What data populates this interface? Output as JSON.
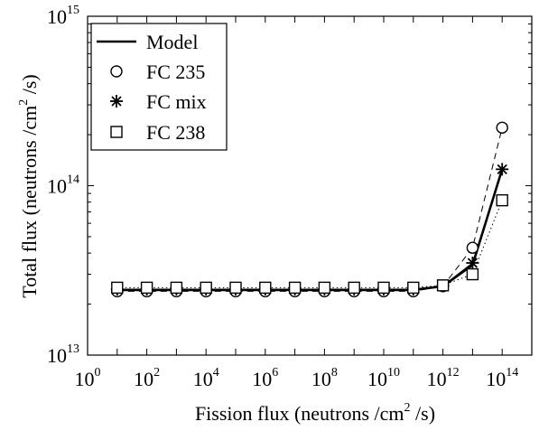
{
  "chart_data": {
    "type": "line",
    "xlabel": {
      "pre": "Fission flux (neutrons /cm",
      "sup": "2",
      "post": " /s)"
    },
    "ylabel": {
      "pre": "Total flux (neutrons /cm",
      "sup": "2",
      "post": " /s)"
    },
    "x_scale": "log",
    "y_scale": "log",
    "xlim": [
      1,
      1000000000000000.0
    ],
    "ylim": [
      10000000000000.0,
      1000000000000000.0
    ],
    "x_ticks": [
      {
        "base": "10",
        "exp": "0",
        "value": 1
      },
      {
        "base": "10",
        "exp": "2",
        "value": 100
      },
      {
        "base": "10",
        "exp": "4",
        "value": 10000
      },
      {
        "base": "10",
        "exp": "6",
        "value": 1000000
      },
      {
        "base": "10",
        "exp": "8",
        "value": 100000000
      },
      {
        "base": "10",
        "exp": "10",
        "value": 10000000000
      },
      {
        "base": "10",
        "exp": "12",
        "value": 1000000000000
      },
      {
        "base": "10",
        "exp": "14",
        "value": 100000000000000
      }
    ],
    "y_ticks": [
      {
        "base": "10",
        "exp": "13",
        "value": 10000000000000.0
      },
      {
        "base": "10",
        "exp": "14",
        "value": 100000000000000.0
      },
      {
        "base": "10",
        "exp": "15",
        "value": 1000000000000000.0
      }
    ],
    "grid": false,
    "legend_position": "top-left",
    "x": [
      10,
      100,
      1000,
      10000,
      100000,
      1000000,
      10000000,
      100000000,
      1000000000,
      10000000000,
      100000000000,
      1000000000000,
      10000000000000,
      100000000000000
    ],
    "series": [
      {
        "name": "Model",
        "line": "solid",
        "marker": "none",
        "values": [
          24200000000000.0,
          24200000000000.0,
          24200000000000.0,
          24200000000000.0,
          24200000000000.0,
          24200000000000.0,
          24200000000000.0,
          24200000000000.0,
          24200000000000.0,
          24200000000000.0,
          24200000000000.0,
          25500000000000.0,
          34000000000000.0,
          125000000000000.0
        ]
      },
      {
        "name": "FC 235",
        "line": "dashed",
        "marker": "circle",
        "values": [
          23800000000000.0,
          23800000000000.0,
          23800000000000.0,
          23800000000000.0,
          23800000000000.0,
          23800000000000.0,
          23800000000000.0,
          23800000000000.0,
          23800000000000.0,
          23800000000000.0,
          23800000000000.0,
          25500000000000.0,
          43000000000000.0,
          220000000000000.0
        ]
      },
      {
        "name": "FC mix",
        "line": "solid",
        "marker": "asterisk",
        "values": [
          24500000000000.0,
          24500000000000.0,
          24500000000000.0,
          24500000000000.0,
          24500000000000.0,
          24500000000000.0,
          24500000000000.0,
          24500000000000.0,
          24500000000000.0,
          24500000000000.0,
          24500000000000.0,
          25700000000000.0,
          35000000000000.0,
          125000000000000.0
        ]
      },
      {
        "name": "FC 238",
        "line": "dotted",
        "marker": "square",
        "values": [
          25000000000000.0,
          25000000000000.0,
          25000000000000.0,
          25000000000000.0,
          25000000000000.0,
          25000000000000.0,
          25000000000000.0,
          25000000000000.0,
          25000000000000.0,
          25000000000000.0,
          25000000000000.0,
          25800000000000.0,
          30000000000000.0,
          82000000000000.0
        ]
      }
    ]
  }
}
